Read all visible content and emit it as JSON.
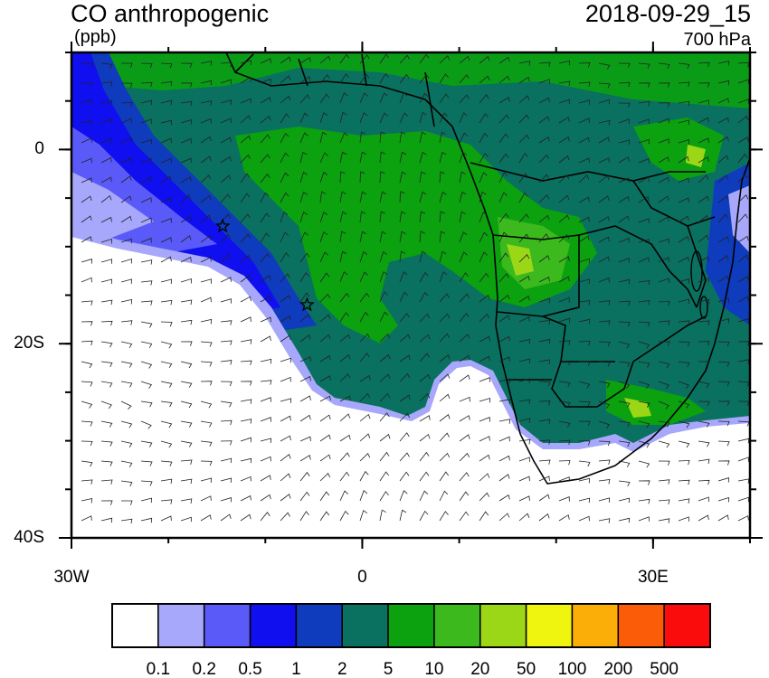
{
  "header": {
    "title": "CO anthropogenic",
    "units": "(ppb)",
    "datetime": "2018-09-29_15",
    "level": "700 hPa"
  },
  "axes": {
    "x_ticks": [
      {
        "label": "30W",
        "lon": -30
      },
      {
        "label": "0",
        "lon": 0
      },
      {
        "label": "30E",
        "lon": 30
      }
    ],
    "y_ticks": [
      {
        "label": "0",
        "lat": 0
      },
      {
        "label": "20S",
        "lat": -20
      },
      {
        "label": "40S",
        "lat": -40
      }
    ],
    "extent": {
      "lon_min": -30,
      "lon_max": 40,
      "lat_min": -40,
      "lat_max": 10
    }
  },
  "colorbar": {
    "colors": [
      "#ffffff",
      "#a7a7fb",
      "#5a5af8",
      "#0f0ff0",
      "#0f3bbd",
      "#0a7060",
      "#0ba10f",
      "#3cb91d",
      "#9bd716",
      "#eff50f",
      "#fbae07",
      "#fb5c07",
      "#fb0c0c"
    ],
    "labels": [
      "0.1",
      "0.2",
      "0.5",
      "1",
      "2",
      "5",
      "10",
      "20",
      "50",
      "100",
      "200",
      "500"
    ]
  },
  "markers": [
    {
      "name": "star",
      "lon": -14.4,
      "lat": -7.9
    },
    {
      "name": "star",
      "lon": -5.7,
      "lat": -16.0
    }
  ]
}
